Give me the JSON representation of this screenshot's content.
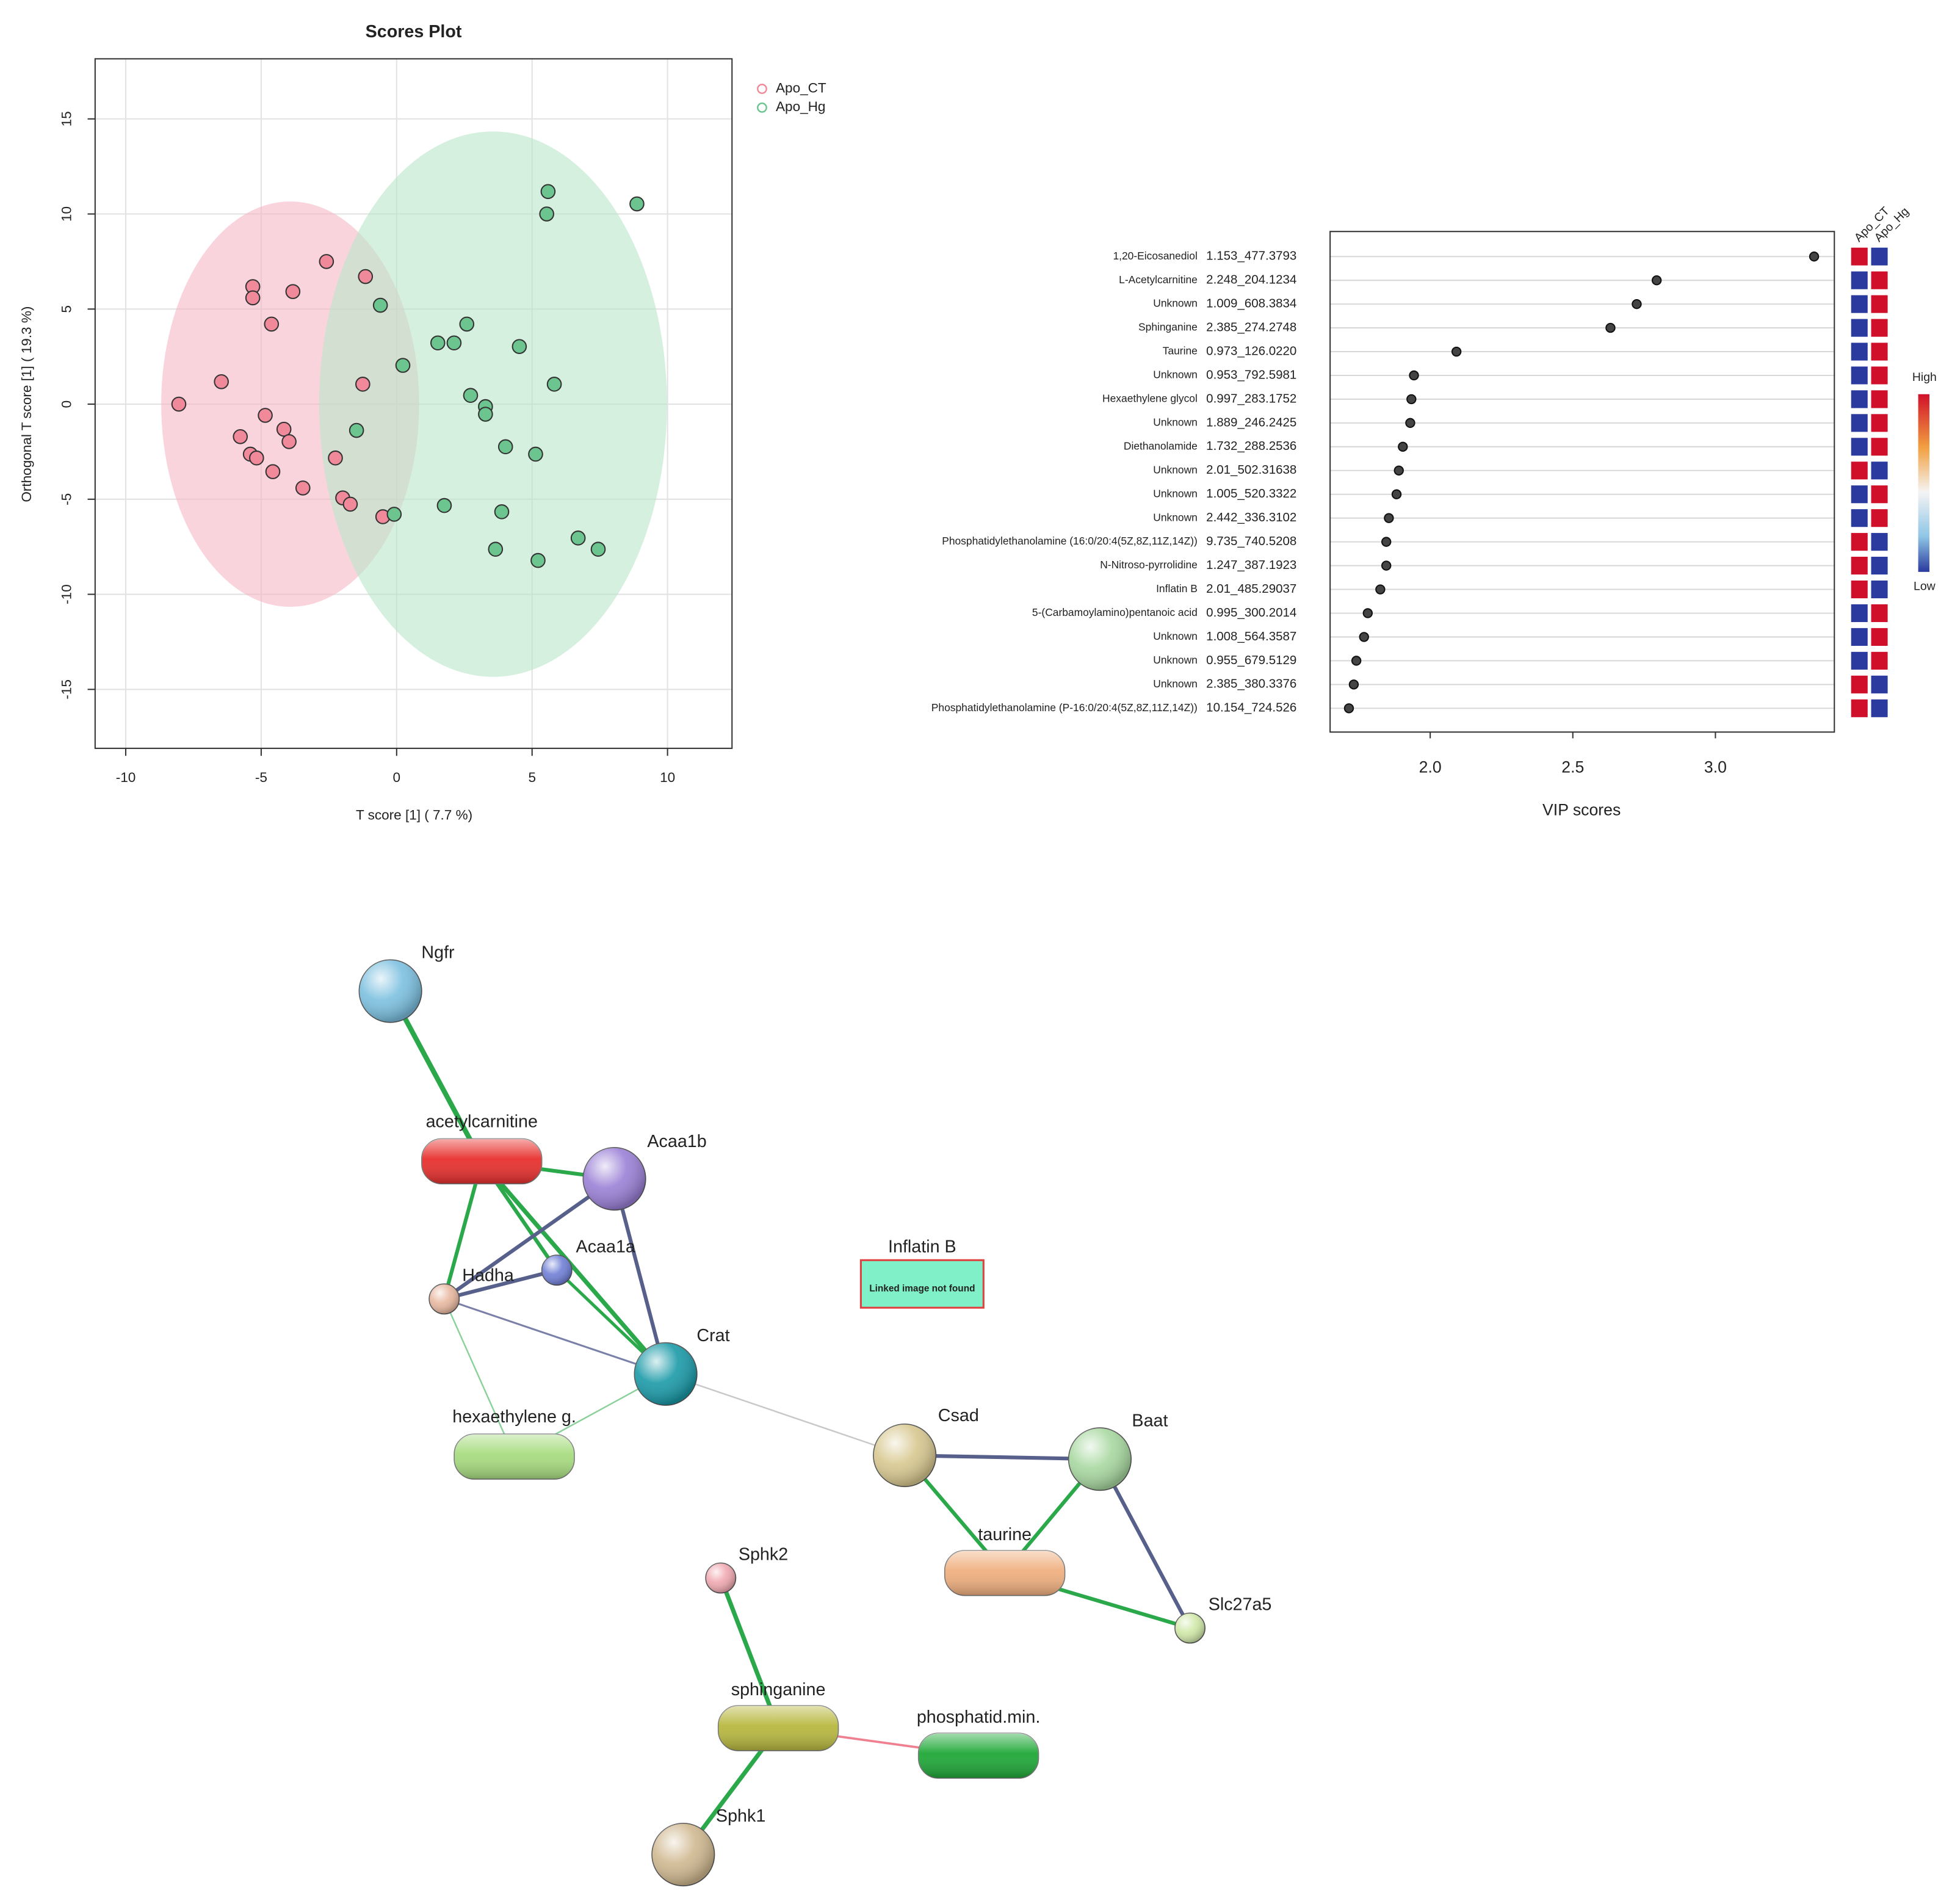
{
  "chart_data": [
    {
      "type": "scatter",
      "title": "Scores Plot",
      "xlabel": "T score [1] ( 7.7 %)",
      "ylabel": "Orthogonal T score [1] ( 19.3 %)",
      "xlim": [
        -11.13,
        12.38
      ],
      "ylim": [
        -18.1,
        18.16
      ],
      "xticks": [
        -10,
        -5,
        0,
        5,
        10
      ],
      "yticks": [
        -15,
        -10,
        -5,
        0,
        5,
        10,
        15
      ],
      "grid": true,
      "legend": "outside-top-right",
      "series": [
        {
          "name": "Apo_CT",
          "color": "#f0899a",
          "ellipse_color": "#f7b8c6",
          "ellipse": [
            -3.93,
            0,
            4.76,
            10.66
          ],
          "x": [
            -8.04,
            -6.47,
            -5.31,
            -5.31,
            -3.83,
            -2.59,
            -1.15,
            -4.62,
            -1.25,
            -4.85,
            -4.16,
            -3.97,
            -5.77,
            -5.4,
            -5.17,
            -4.57,
            -3.46,
            -2.26,
            -1.99,
            -1.71,
            -0.51
          ],
          "values": [
            0,
            1.18,
            6.18,
            5.59,
            5.92,
            7.5,
            6.71,
            4.21,
            1.05,
            -0.59,
            -1.32,
            -1.97,
            -1.71,
            -2.63,
            -2.83,
            -3.55,
            -4.41,
            -2.83,
            -4.93,
            -5.26,
            -5.92
          ]
        },
        {
          "name": "Apo_Hg",
          "color": "#6cc48e",
          "ellipse_color": "#b9e6c8",
          "ellipse": [
            3.56,
            0,
            6.42,
            14.34
          ],
          "x": [
            5.59,
            5.54,
            8.87,
            -0.6,
            2.59,
            1.52,
            2.12,
            4.53,
            0.23,
            5.82,
            2.73,
            3.28,
            3.28,
            -1.48,
            4.02,
            5.13,
            1.76,
            3.88,
            -0.09,
            3.65,
            5.22,
            6.7,
            7.44
          ],
          "values": [
            11.18,
            10.0,
            10.53,
            5.2,
            4.21,
            3.22,
            3.22,
            3.03,
            2.04,
            1.05,
            0.46,
            -0.13,
            -0.53,
            -1.38,
            -2.24,
            -2.63,
            -5.33,
            -5.66,
            -5.79,
            -7.63,
            -8.22,
            -7.04,
            -7.63
          ]
        }
      ]
    },
    {
      "type": "dot",
      "xlabel": "VIP scores",
      "xlim": [
        1.649,
        3.417
      ],
      "xticks": [
        {
          "value": 2,
          "label": "2.0"
        },
        {
          "value": 2.5,
          "label": "2.5"
        },
        {
          "value": 3,
          "label": "3.0"
        }
      ],
      "color": "#444444",
      "categories": [
        "1,20-Eicosanediol",
        "L-Acetylcarnitine",
        "Unknown",
        "Sphinganine",
        "Taurine",
        "Unknown",
        "Hexaethylene glycol",
        "Unknown",
        "Diethanolamide",
        "Unknown",
        "Unknown",
        "Unknown",
        "Phosphatidylethanolamine (16:0/20:4(5Z,8Z,11Z,14Z))",
        "N-Nitroso-pyrrolidine",
        "Inflatin B",
        "5-(Carbamoylamino)pentanoic acid",
        "Unknown",
        "Unknown",
        "Unknown",
        "Phosphatidylethanolamine (P-16:0/20:4(5Z,8Z,11Z,14Z))"
      ],
      "ids": [
        "1.153_477.3793",
        "2.248_204.1234",
        "1.009_608.3834",
        "2.385_274.2748",
        "0.973_126.0220",
        "0.953_792.5981",
        "0.997_283.1752",
        "1.889_246.2425",
        "1.732_288.2536",
        "2.01_502.31638",
        "1.005_520.3322",
        "2.442_336.3102",
        "9.735_740.5208",
        "1.247_387.1923",
        "2.01_485.29037",
        "0.995_300.2014",
        "1.008_564.3587",
        "0.955_679.5129",
        "2.385_380.3376",
        "10.154_724.526"
      ],
      "values": [
        3.346,
        2.794,
        2.724,
        2.632,
        2.092,
        1.943,
        1.934,
        1.93,
        1.904,
        1.89,
        1.882,
        1.855,
        1.846,
        1.846,
        1.825,
        1.781,
        1.768,
        1.741,
        1.732,
        1.715
      ],
      "heatmap_columns": [
        "Apo_CT",
        "Apo_Hg"
      ],
      "heatmap_high": "High",
      "heatmap_low": "Low",
      "heatmap_colors": [
        [
          "#d0102a",
          "#2b3a9e"
        ],
        [
          "#2b3a9e",
          "#d0102a"
        ],
        [
          "#2b3a9e",
          "#d0102a"
        ],
        [
          "#2b3a9e",
          "#d0102a"
        ],
        [
          "#2b3a9e",
          "#d0102a"
        ],
        [
          "#2b3a9e",
          "#d0102a"
        ],
        [
          "#2b3a9e",
          "#d0102a"
        ],
        [
          "#2b3a9e",
          "#d0102a"
        ],
        [
          "#2b3a9e",
          "#d0102a"
        ],
        [
          "#d0102a",
          "#2b3a9e"
        ],
        [
          "#2b3a9e",
          "#d0102a"
        ],
        [
          "#2b3a9e",
          "#d0102a"
        ],
        [
          "#d0102a",
          "#2b3a9e"
        ],
        [
          "#d0102a",
          "#2b3a9e"
        ],
        [
          "#d0102a",
          "#2b3a9e"
        ],
        [
          "#2b3a9e",
          "#d0102a"
        ],
        [
          "#2b3a9e",
          "#d0102a"
        ],
        [
          "#2b3a9e",
          "#d0102a"
        ],
        [
          "#d0102a",
          "#2b3a9e"
        ],
        [
          "#d0102a",
          "#2b3a9e"
        ]
      ]
    }
  ],
  "network": {
    "nodes": [
      "Ngfr",
      "acetylcarnitine",
      "Acaa1b",
      "Acaa1a",
      "Hadha",
      "Crat",
      "hexaethylene g.",
      "Inflatin B",
      "Csad",
      "Baat",
      "taurine",
      "Slc27a5",
      "Sphk2",
      "sphinganine",
      "phosphatid.min.",
      "Sphk1"
    ],
    "placeholder": "Linked image not found"
  }
}
